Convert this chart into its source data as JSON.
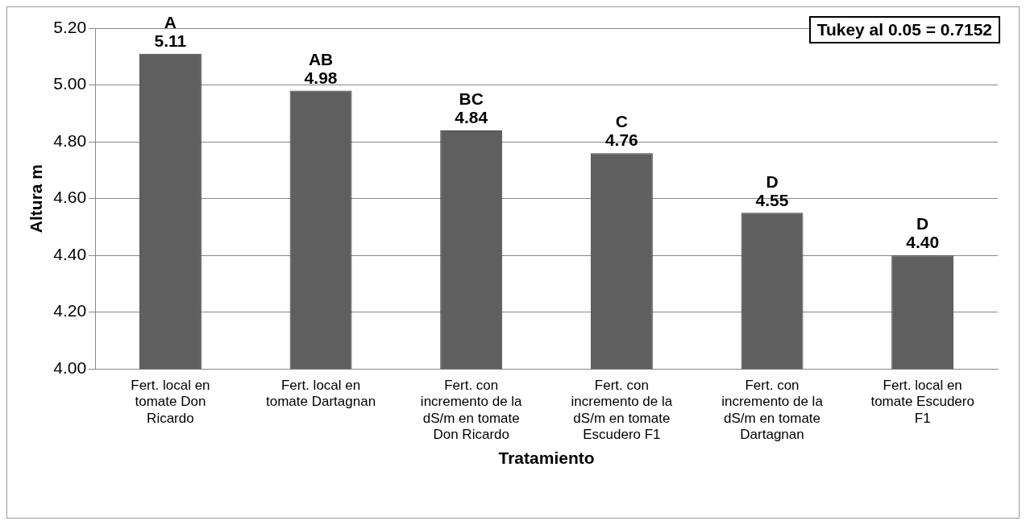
{
  "chart_data": {
    "type": "bar",
    "xlabel": "Tratamiento",
    "ylabel": "Altura m",
    "categories": [
      "Fert. local en tomate Don Ricardo",
      "Fert. local en tomate Dartagnan",
      "Fert. con incremento de la dS/m en tomate Don Ricardo",
      "Fert. con incremento de la dS/m en tomate Escudero F1",
      "Fert. con incremento de la dS/m en tomate Dartagnan",
      "Fert. local en tomate Escudero F1"
    ],
    "values": [
      5.11,
      4.98,
      4.84,
      4.76,
      4.55,
      4.4
    ],
    "color": "#5f5f5f",
    "ylim": [
      4.0,
      5.2
    ],
    "yticks": [
      {
        "value": 4.0,
        "label": "4.00"
      },
      {
        "value": 4.2,
        "label": "4.20"
      },
      {
        "value": 4.4,
        "label": "4.40"
      },
      {
        "value": 4.6,
        "label": "4.60"
      },
      {
        "value": 4.8,
        "label": "4.80"
      },
      {
        "value": 5.0,
        "label": "5.00"
      },
      {
        "value": 5.2,
        "label": "5.20"
      }
    ],
    "value_labels": [
      "5.11",
      "4.98",
      "4.84",
      "4.76",
      "4.55",
      "4.40"
    ],
    "grid": "y",
    "legend": false,
    "annotations": [
      {
        "text": "A",
        "x": "Fert. local en tomate Don Ricardo",
        "y": 5.11
      },
      {
        "text": "AB",
        "x": "Fert. local en tomate Dartagnan",
        "y": 4.98
      },
      {
        "text": "BC",
        "x": "Fert. con incremento de la dS/m en tomate Don Ricardo",
        "y": 4.84
      },
      {
        "text": "C",
        "x": "Fert. con incremento de la dS/m en tomate Escudero F1",
        "y": 4.76
      },
      {
        "text": "D",
        "x": "Fert. con incremento de la dS/m en tomate Dartagnan",
        "y": 4.55
      },
      {
        "text": "D",
        "x": "Fert. local en tomate Escudero F1",
        "y": 4.4
      },
      "Tukey al 0.05 = 0.7152"
    ]
  }
}
